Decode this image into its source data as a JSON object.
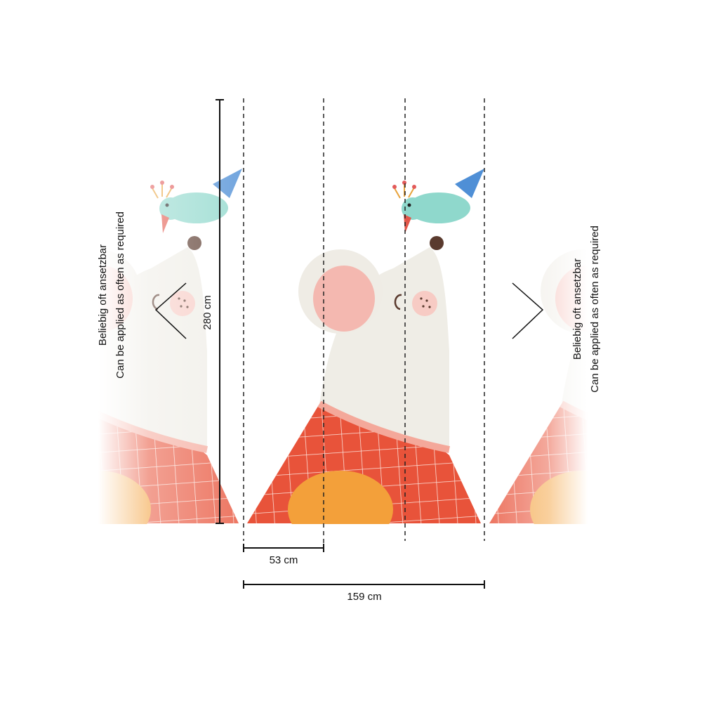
{
  "left_note": {
    "line1": "Beliebig oft ansetzbar",
    "line2": "Can be applied as often as required"
  },
  "right_note": {
    "line1": "Beliebig oft ansetzbar",
    "line2": "Can be applied as often as required"
  },
  "dimensions": {
    "height": "280 cm",
    "panel_width": "53 cm",
    "total_width": "159 cm"
  }
}
